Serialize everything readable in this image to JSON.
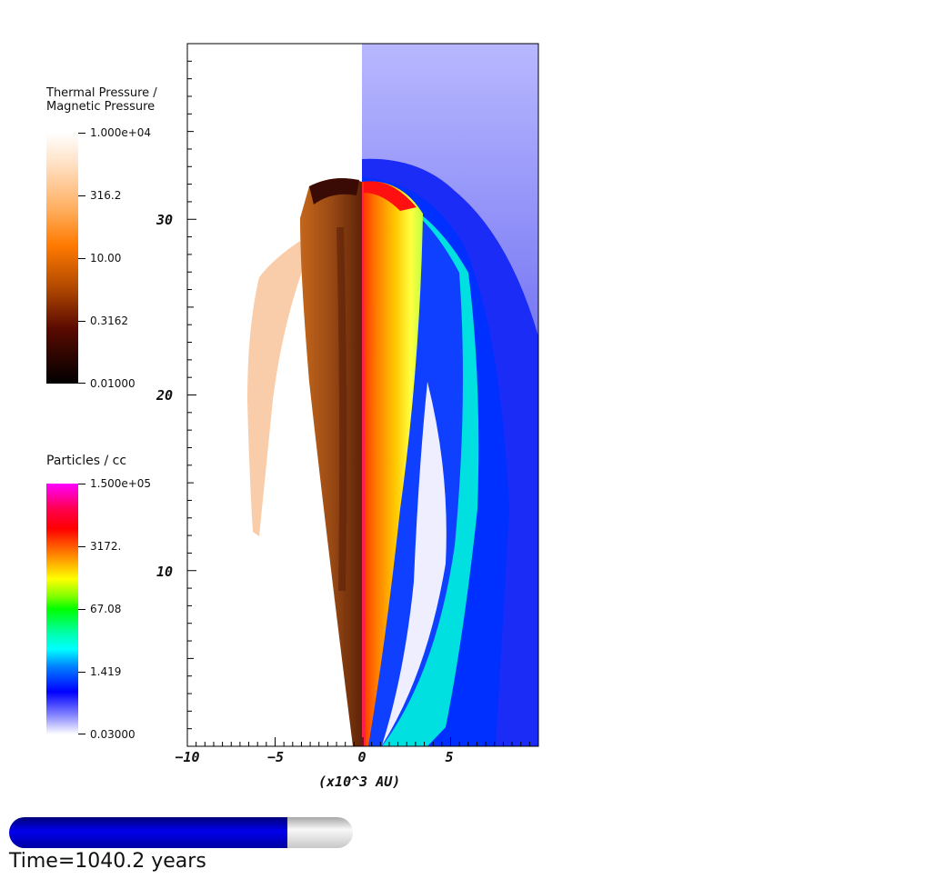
{
  "chart_data": {
    "type": "heatmap",
    "title": "",
    "xlabel": "(x10^3 AU)",
    "ylabel": "",
    "xlim": [
      -10,
      10
    ],
    "ylim": [
      0,
      40
    ],
    "x_ticks": [
      -10,
      -5,
      0,
      5
    ],
    "x_tick_labels": [
      "−10",
      "−5",
      "0",
      "5"
    ],
    "y_ticks": [
      10,
      20,
      30
    ],
    "y_tick_labels": [
      "10",
      "20",
      "30"
    ],
    "grid": false,
    "colorbars": [
      {
        "name": "thermal-pressure-colorbar",
        "title_lines": [
          "Thermal Pressure /",
          "Magnetic Pressure"
        ],
        "scale": "log",
        "range": [
          0.01,
          10000
        ],
        "tick_labels": [
          "1.000e+04",
          "316.2",
          "10.00",
          "0.3162",
          "0.01000"
        ],
        "colors": [
          "#ffffff",
          "#ffb062",
          "#ff7a00",
          "#b04800",
          "#5a0a00",
          "#000000"
        ]
      },
      {
        "name": "particles-colorbar",
        "title_lines": [
          "Particles / cc"
        ],
        "scale": "log",
        "range": [
          0.03,
          150000
        ],
        "tick_labels": [
          "1.500e+05",
          "3172.",
          "67.08",
          "1.419",
          "0.03000"
        ],
        "colors": [
          "#ff00ff",
          "#ff0000",
          "#ff8000",
          "#ffff00",
          "#00ff00",
          "#00ffff",
          "#0080ff",
          "#0000ff",
          "#ffffff"
        ]
      }
    ],
    "time_progress": 0.81,
    "time_label": "Time=1040.2 years",
    "colors": {
      "progress_fill": "#0000dd",
      "progress_track": "#d8d8d8"
    }
  }
}
